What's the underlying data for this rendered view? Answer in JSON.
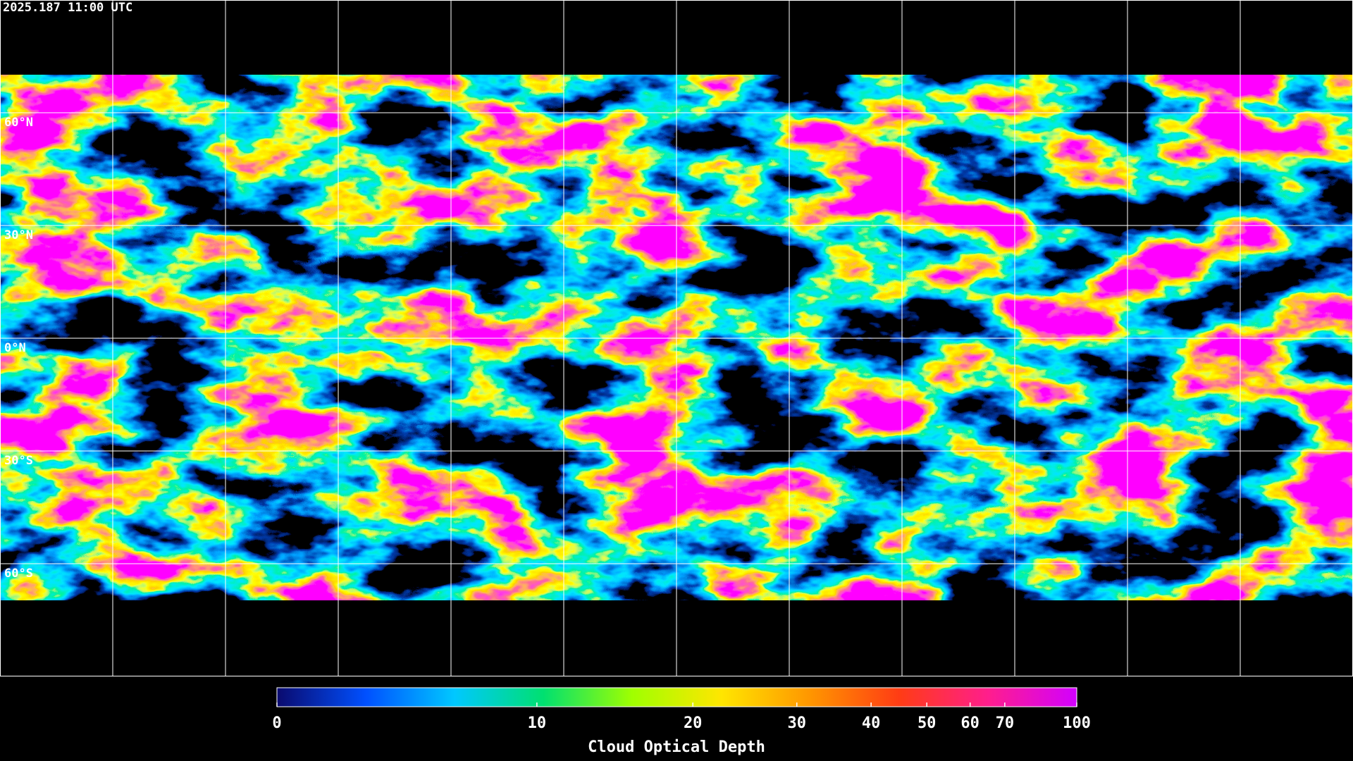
{
  "header": {
    "timestamp": "2025.187 11:00 UTC"
  },
  "map": {
    "lat_labels": [
      "60°N",
      "30°N",
      "0°N",
      "30°S",
      "60°S"
    ]
  },
  "colorbar": {
    "title": "Cloud Optical Depth",
    "lim": [
      0,
      100
    ],
    "ticks": [
      0,
      10,
      20,
      30,
      40,
      50,
      60,
      70,
      100
    ],
    "colors": [
      "#0a0a6e",
      "#0050ff",
      "#00c8ff",
      "#00e070",
      "#a0ff00",
      "#ffe600",
      "#ff9600",
      "#ff3c14",
      "#ff1e8c",
      "#d200ff"
    ]
  }
}
